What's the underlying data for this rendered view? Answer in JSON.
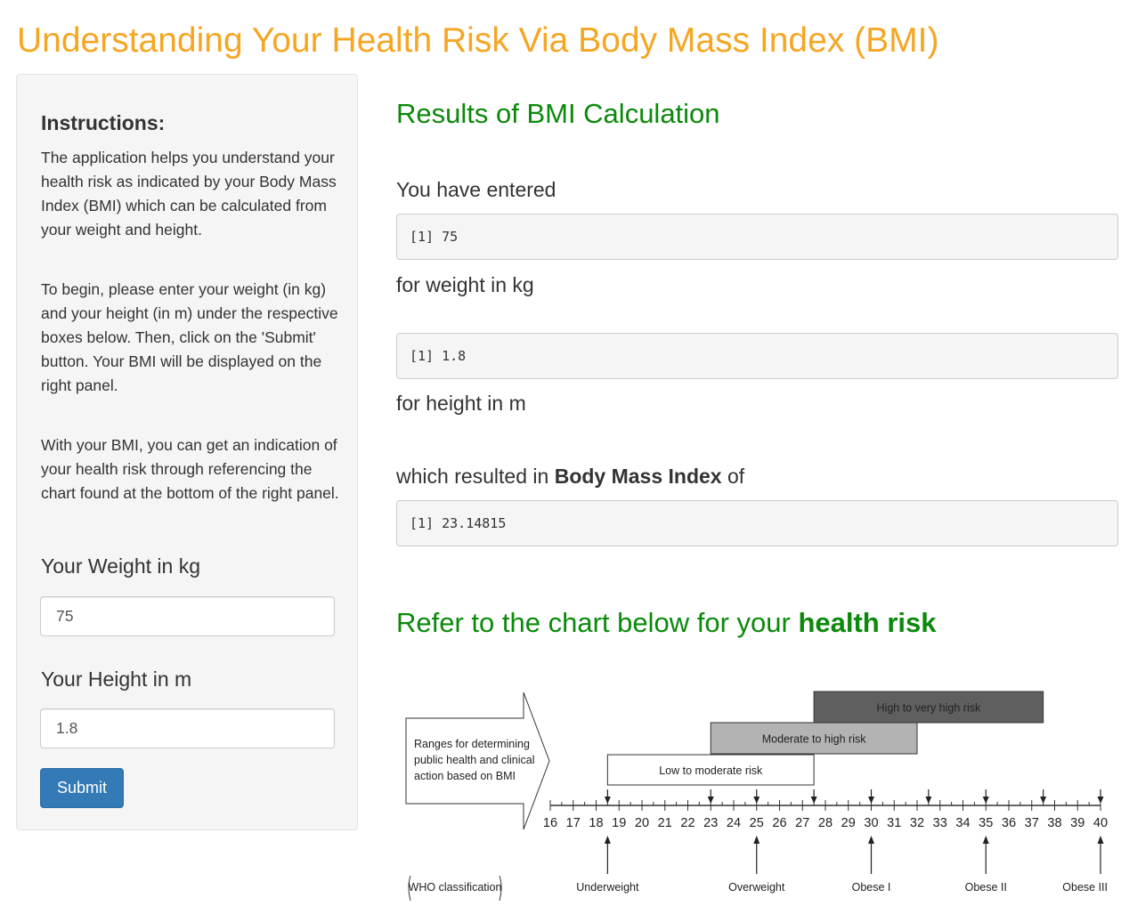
{
  "title": "Understanding Your Health Risk Via Body Mass Index (BMI)",
  "colors": {
    "title": "#f5a623",
    "heading_green": "#0a8a0a",
    "button": "#337ab7"
  },
  "sidebar": {
    "heading": "Instructions:",
    "paragraphs": [
      "The application helps you understand your health risk as indicated by your Body Mass Index (BMI) which can be calculated from your weight and height.",
      "To begin, please enter your weight (in kg) and your height (in m) under the respective boxes below. Then, click on the 'Submit' button. Your BMI will be displayed on the right panel.",
      "With your BMI, you can get an indication of your health risk through referencing the chart found at the bottom of the right panel."
    ],
    "weight_label": "Your Weight in kg",
    "weight_value": "75",
    "height_label": "Your Height in m",
    "height_value": "1.8",
    "submit_label": "Submit"
  },
  "main": {
    "results_heading": "Results of BMI Calculation",
    "entered_label": "You have entered",
    "weight_output": "[1] 75",
    "weight_unit_label": "for weight in kg",
    "height_output": "[1] 1.8",
    "height_unit_label": "for height in m",
    "resulted_prefix": "which resulted in ",
    "resulted_bold": "Body Mass Index",
    "resulted_suffix": " of",
    "bmi_output": "[1] 23.14815",
    "chart_heading_prefix": "Refer to the chart below for your ",
    "chart_heading_bold": "health risk"
  },
  "bmi_chart": {
    "arrow_text": [
      "Ranges for determining",
      "public health and clinical",
      "action based on BMI"
    ],
    "axis_min": 16,
    "axis_max": 40,
    "ticks": [
      "16",
      "17",
      "18",
      "19",
      "20",
      "21",
      "22",
      "23",
      "24",
      "25",
      "26",
      "27",
      "28",
      "29",
      "30",
      "31",
      "32",
      "33",
      "34",
      "35",
      "36",
      "37",
      "38",
      "39",
      "40"
    ],
    "risk_bands": [
      {
        "label": "Low to moderate risk",
        "start": 18.5,
        "end": 27.5,
        "fill": "#ffffff"
      },
      {
        "label": "Moderate to high risk",
        "start": 23,
        "end": 32,
        "fill": "#b3b3b3"
      },
      {
        "label": "High to very high risk",
        "start": 27.5,
        "end": 37.5,
        "fill": "#5f5f5f"
      }
    ],
    "down_arrows": [
      18.5,
      23,
      25,
      27.5,
      30,
      32.5,
      35,
      37.5,
      40
    ],
    "who_label": "WHO classification",
    "who_classes": [
      {
        "label": "Underweight",
        "at": 18.5
      },
      {
        "label": "Overweight",
        "at": 25
      },
      {
        "label": "Obese I",
        "at": 30
      },
      {
        "label": "Obese II",
        "at": 35
      },
      {
        "label": "Obese III",
        "at": 40
      }
    ]
  }
}
